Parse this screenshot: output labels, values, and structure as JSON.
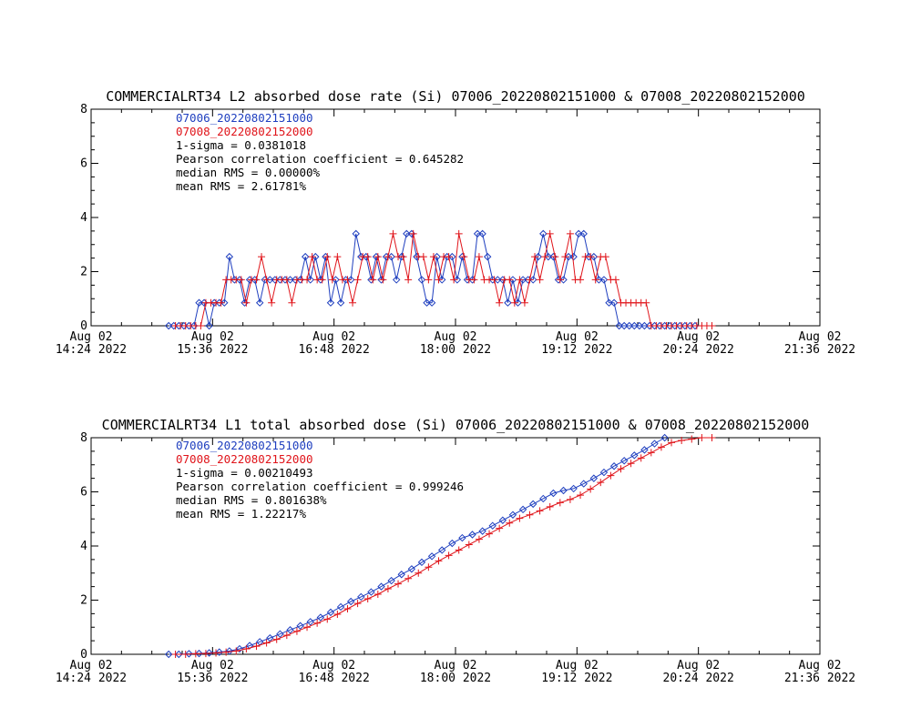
{
  "colors": {
    "series_a": "#1f3fbf",
    "series_b": "#e0141a",
    "axis": "#000000"
  },
  "chart_data": [
    {
      "type": "line",
      "title": "COMMERCIALRT34 L2 absorbed dose rate (Si) 07006_20220802151000 & 07008_20220802152000",
      "ylim": [
        0,
        8
      ],
      "xlim_minutes": [
        864,
        1296
      ],
      "y_major_ticks": [
        0,
        2,
        4,
        6,
        8
      ],
      "y_tick_labels": [
        "0",
        "2",
        "4",
        "6",
        "8"
      ],
      "x_ticks": [
        {
          "minute": 864,
          "line1": "Aug 02",
          "line2": "14:24 2022"
        },
        {
          "minute": 936,
          "line1": "Aug 02",
          "line2": "15:36 2022"
        },
        {
          "minute": 1008,
          "line1": "Aug 02",
          "line2": "16:48 2022"
        },
        {
          "minute": 1080,
          "line1": "Aug 02",
          "line2": "18:00 2022"
        },
        {
          "minute": 1152,
          "line1": "Aug 02",
          "line2": "19:12 2022"
        },
        {
          "minute": 1224,
          "line1": "Aug 02",
          "line2": "20:24 2022"
        },
        {
          "minute": 1296,
          "line1": "Aug 02",
          "line2": "21:36 2022"
        }
      ],
      "grid": false,
      "annotations": [
        "07006_20220802151000",
        "07008_20220802152000",
        "1-sigma = 0.0381018",
        "Pearson correlation coefficient = 0.645282",
        "median RMS = 0.00000%",
        "mean RMS = 2.61781%"
      ],
      "series": [
        {
          "name": "07006_20220802151000",
          "marker": "diamond",
          "x": [
            910,
            913,
            916,
            919,
            922,
            925,
            928,
            931,
            934,
            937,
            940,
            943,
            946,
            949,
            952,
            955,
            958,
            961,
            964,
            967,
            970,
            973,
            976,
            979,
            982,
            985,
            988,
            991,
            994,
            997,
            1000,
            1003,
            1006,
            1009,
            1012,
            1015,
            1018,
            1021,
            1024,
            1027,
            1030,
            1033,
            1036,
            1039,
            1042,
            1045,
            1048,
            1051,
            1054,
            1057,
            1060,
            1063,
            1066,
            1069,
            1072,
            1075,
            1078,
            1081,
            1084,
            1087,
            1090,
            1093,
            1096,
            1099,
            1102,
            1105,
            1108,
            1111,
            1114,
            1117,
            1120,
            1123,
            1126,
            1129,
            1132,
            1135,
            1138,
            1141,
            1144,
            1147,
            1150,
            1153,
            1156,
            1159,
            1162,
            1165,
            1168,
            1171,
            1174,
            1177,
            1180,
            1183,
            1186,
            1189,
            1192,
            1195,
            1198,
            1201,
            1204,
            1207,
            1210,
            1213,
            1216,
            1219,
            1222
          ],
          "y": [
            0,
            0,
            0,
            0,
            0,
            0,
            0.85,
            0.85,
            0,
            0.85,
            0.85,
            0.85,
            2.55,
            1.7,
            1.7,
            0.85,
            1.7,
            1.7,
            0.85,
            1.7,
            1.7,
            1.7,
            1.7,
            1.7,
            1.7,
            1.7,
            1.7,
            2.55,
            1.7,
            2.55,
            1.7,
            2.55,
            0.85,
            1.7,
            0.85,
            1.7,
            1.7,
            3.4,
            2.55,
            2.55,
            1.7,
            2.55,
            1.7,
            2.55,
            2.55,
            1.7,
            2.55,
            3.4,
            3.4,
            2.55,
            1.7,
            0.85,
            0.85,
            2.55,
            1.7,
            2.55,
            2.55,
            1.7,
            2.55,
            1.7,
            1.7,
            3.4,
            3.4,
            2.55,
            1.7,
            1.7,
            1.7,
            0.85,
            1.7,
            0.85,
            1.7,
            1.7,
            1.7,
            2.55,
            3.4,
            2.55,
            2.55,
            1.7,
            1.7,
            2.55,
            2.55,
            3.4,
            3.4,
            2.55,
            2.55,
            1.7,
            1.7,
            0.85,
            0.85,
            0,
            0,
            0,
            0,
            0,
            0,
            0,
            0,
            0,
            0,
            0,
            0,
            0,
            0,
            0,
            0
          ]
        },
        {
          "name": "07008_20220802152000",
          "marker": "plus",
          "x": [
            914,
            917,
            920,
            923,
            926,
            929,
            932,
            935,
            938,
            941,
            944,
            947,
            950,
            953,
            956,
            959,
            962,
            965,
            968,
            971,
            974,
            977,
            980,
            983,
            986,
            989,
            992,
            995,
            998,
            1001,
            1004,
            1007,
            1010,
            1013,
            1016,
            1019,
            1022,
            1025,
            1028,
            1031,
            1034,
            1037,
            1040,
            1043,
            1046,
            1049,
            1052,
            1055,
            1058,
            1061,
            1064,
            1067,
            1070,
            1073,
            1076,
            1079,
            1082,
            1085,
            1088,
            1091,
            1094,
            1097,
            1100,
            1103,
            1106,
            1109,
            1112,
            1115,
            1118,
            1121,
            1124,
            1127,
            1130,
            1133,
            1136,
            1139,
            1142,
            1145,
            1148,
            1151,
            1154,
            1157,
            1160,
            1163,
            1166,
            1169,
            1172,
            1175,
            1178,
            1181,
            1184,
            1187,
            1190,
            1193,
            1196,
            1199,
            1202,
            1205,
            1208,
            1211,
            1214,
            1217,
            1220,
            1223,
            1226,
            1229,
            1232
          ],
          "y": [
            0,
            0,
            0,
            0,
            0,
            0,
            0.85,
            0.85,
            0.85,
            0.85,
            1.7,
            1.7,
            1.7,
            1.7,
            0.85,
            1.7,
            1.7,
            2.55,
            1.7,
            0.85,
            1.7,
            1.7,
            1.7,
            0.85,
            1.7,
            1.7,
            1.7,
            2.55,
            1.7,
            1.7,
            2.55,
            1.7,
            2.55,
            1.7,
            1.7,
            0.85,
            1.7,
            2.55,
            2.55,
            1.7,
            2.55,
            1.7,
            2.55,
            3.4,
            2.55,
            2.55,
            1.7,
            3.4,
            2.55,
            2.55,
            1.7,
            2.55,
            1.7,
            2.55,
            2.55,
            1.7,
            3.4,
            2.55,
            1.7,
            1.7,
            2.55,
            1.7,
            1.7,
            1.7,
            0.85,
            1.7,
            1.7,
            0.85,
            1.7,
            0.85,
            1.7,
            2.55,
            1.7,
            2.55,
            3.4,
            2.55,
            1.7,
            2.55,
            3.4,
            1.7,
            1.7,
            2.55,
            2.55,
            1.7,
            2.55,
            2.55,
            1.7,
            1.7,
            0.85,
            0.85,
            0.85,
            0.85,
            0.85,
            0.85,
            0,
            0,
            0,
            0,
            0,
            0,
            0,
            0,
            0,
            0,
            0,
            0,
            0
          ]
        }
      ]
    },
    {
      "type": "line",
      "title": "COMMERCIALRT34 L1 total absorbed dose (Si) 07006_20220802151000 & 07008_20220802152000",
      "ylim": [
        0,
        8
      ],
      "xlim_minutes": [
        864,
        1296
      ],
      "y_major_ticks": [
        0,
        2,
        4,
        6,
        8
      ],
      "y_tick_labels": [
        "0",
        "2",
        "4",
        "6",
        "8"
      ],
      "x_ticks": [
        {
          "minute": 864,
          "line1": "Aug 02",
          "line2": "14:24 2022"
        },
        {
          "minute": 936,
          "line1": "Aug 02",
          "line2": "15:36 2022"
        },
        {
          "minute": 1008,
          "line1": "Aug 02",
          "line2": "16:48 2022"
        },
        {
          "minute": 1080,
          "line1": "Aug 02",
          "line2": "18:00 2022"
        },
        {
          "minute": 1152,
          "line1": "Aug 02",
          "line2": "19:12 2022"
        },
        {
          "minute": 1224,
          "line1": "Aug 02",
          "line2": "20:24 2022"
        },
        {
          "minute": 1296,
          "line1": "Aug 02",
          "line2": "21:36 2022"
        }
      ],
      "grid": false,
      "annotations": [
        "07006_20220802151000",
        "07008_20220802152000",
        "1-sigma = 0.00210493",
        "Pearson correlation coefficient = 0.999246",
        "median RMS = 0.801638%",
        "mean RMS = 1.22217%"
      ],
      "series": [
        {
          "name": "07006_20220802151000",
          "marker": "diamond",
          "x": [
            910,
            916,
            922,
            928,
            934,
            940,
            946,
            952,
            958,
            964,
            970,
            976,
            982,
            988,
            994,
            1000,
            1006,
            1012,
            1018,
            1024,
            1030,
            1036,
            1042,
            1048,
            1054,
            1060,
            1066,
            1072,
            1078,
            1084,
            1090,
            1096,
            1102,
            1108,
            1114,
            1120,
            1126,
            1132,
            1138,
            1144,
            1150,
            1156,
            1162,
            1168,
            1174,
            1180,
            1186,
            1192,
            1198,
            1204
          ],
          "y": [
            0,
            0,
            0.02,
            0.03,
            0.05,
            0.08,
            0.12,
            0.2,
            0.32,
            0.46,
            0.6,
            0.75,
            0.9,
            1.05,
            1.2,
            1.36,
            1.55,
            1.75,
            1.95,
            2.12,
            2.3,
            2.5,
            2.72,
            2.95,
            3.15,
            3.4,
            3.62,
            3.85,
            4.1,
            4.3,
            4.42,
            4.55,
            4.75,
            4.95,
            5.15,
            5.35,
            5.55,
            5.75,
            5.95,
            6.05,
            6.12,
            6.3,
            6.5,
            6.72,
            6.95,
            7.15,
            7.35,
            7.55,
            7.78,
            8.0
          ]
        },
        {
          "name": "07008_20220802152000",
          "marker": "plus",
          "x": [
            914,
            920,
            926,
            932,
            938,
            944,
            950,
            956,
            962,
            968,
            974,
            980,
            986,
            992,
            998,
            1004,
            1010,
            1016,
            1022,
            1028,
            1034,
            1040,
            1046,
            1052,
            1058,
            1064,
            1070,
            1076,
            1082,
            1088,
            1094,
            1100,
            1106,
            1112,
            1118,
            1124,
            1130,
            1136,
            1142,
            1148,
            1154,
            1160,
            1166,
            1172,
            1178,
            1184,
            1190,
            1196,
            1202,
            1208,
            1214,
            1220,
            1226,
            1232
          ],
          "y": [
            0,
            0,
            0.02,
            0.03,
            0.05,
            0.08,
            0.12,
            0.2,
            0.3,
            0.42,
            0.55,
            0.7,
            0.85,
            1.0,
            1.15,
            1.3,
            1.48,
            1.68,
            1.88,
            2.05,
            2.22,
            2.42,
            2.6,
            2.8,
            3.0,
            3.22,
            3.45,
            3.65,
            3.85,
            4.05,
            4.25,
            4.45,
            4.65,
            4.85,
            5.02,
            5.15,
            5.3,
            5.45,
            5.6,
            5.72,
            5.88,
            6.1,
            6.35,
            6.6,
            6.85,
            7.05,
            7.25,
            7.45,
            7.65,
            7.82,
            7.9,
            7.95,
            8.0,
            8.0
          ]
        }
      ]
    }
  ]
}
